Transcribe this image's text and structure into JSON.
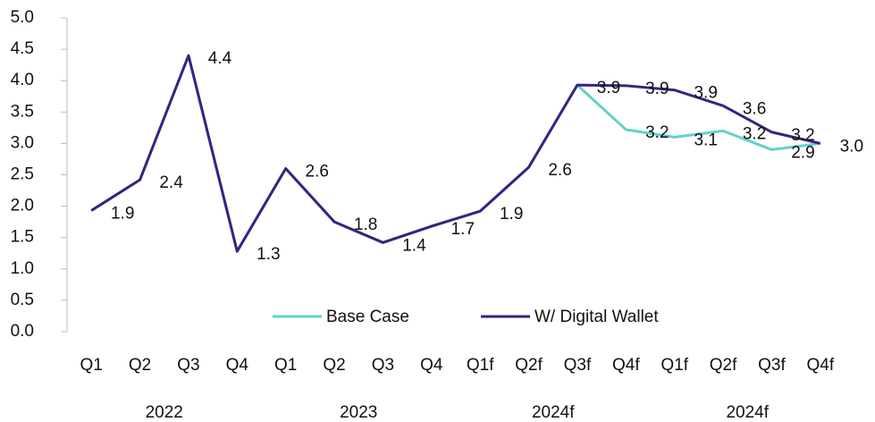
{
  "chart_data": {
    "type": "line",
    "categories": [
      "Q1",
      "Q2",
      "Q3",
      "Q4",
      "Q1",
      "Q2",
      "Q3",
      "Q4",
      "Q1f",
      "Q2f",
      "Q3f",
      "Q4f",
      "Q1f",
      "Q2f",
      "Q3f",
      "Q4f"
    ],
    "groups": [
      "2022",
      "2023",
      "2024f",
      "2024f"
    ],
    "series": [
      {
        "name": "Base Case",
        "color": "#62d2c9",
        "values": [
          1.93,
          2.42,
          4.4,
          1.28,
          2.6,
          1.75,
          1.42,
          1.68,
          1.92,
          2.62,
          3.93,
          3.22,
          3.1,
          3.2,
          2.9,
          3.0
        ]
      },
      {
        "name": "W/ Digital Wallet",
        "color": "#3c2181",
        "values": [
          1.93,
          2.42,
          4.4,
          1.28,
          2.6,
          1.75,
          1.42,
          1.68,
          1.92,
          2.62,
          3.93,
          3.92,
          3.85,
          3.6,
          3.18,
          3.0
        ]
      }
    ],
    "ylim": [
      0,
      5
    ],
    "yticks": [
      {
        "value": 0,
        "label": "0.0"
      },
      0.5,
      {
        "value": 1,
        "label": "1.0"
      },
      1.5,
      {
        "value": 2,
        "label": "2.0"
      },
      2.5,
      {
        "value": 3,
        "label": "3.0"
      },
      3.5,
      {
        "value": 4,
        "label": "4.0"
      },
      4.5,
      {
        "value": 5,
        "label": "5.0"
      }
    ]
  }
}
